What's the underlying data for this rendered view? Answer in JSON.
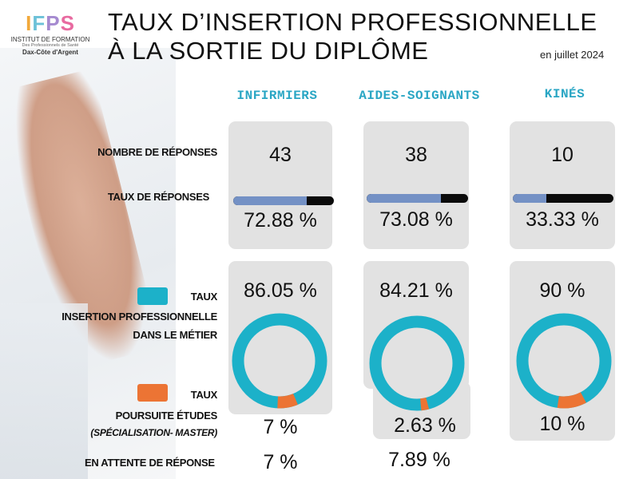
{
  "logo": {
    "letters": [
      "I",
      "F",
      "P",
      "S"
    ],
    "line1": "INSTITUT DE FORMATION",
    "line2": "Des Professionnels de Santé",
    "line3": "Dax-Côte d'Argent"
  },
  "title": {
    "line1": "TAUX D’INSERTION PROFESSIONNELLE",
    "line2": "À LA SORTIE DU DIPLÔME",
    "date": "en juillet 2024"
  },
  "columns": [
    "INFIRMIERS",
    "AIDES-SOIGNANTS",
    "KINÉS"
  ],
  "rows": {
    "nb_reponses": "NOMBRE DE RÉPONSES",
    "taux_reponses": "TAUX  DE RÉPONSES",
    "insertion": {
      "l1": "TAUX",
      "l2": "INSERTION PROFESSIONNELLE",
      "l3": "DANS LE MÉTIER"
    },
    "poursuite": {
      "l1": "TAUX",
      "l2": "POURSUITE ÉTUDES",
      "l3": "(SPÉCIALISATION- MASTER)"
    },
    "attente": "EN ATTENTE DE RÉPONSE"
  },
  "colors": {
    "insertion": "#1cb1c9",
    "poursuite": "#ec7434",
    "bar_fill": "#7491c5",
    "bar_track": "#0b0b0b",
    "panel": "#e2e2e2",
    "heading": "#2aa6c4"
  },
  "data": [
    {
      "nb": "43",
      "taux_rep": "72.88 %",
      "taux_rep_value": 72.88,
      "insertion": "86.05 %",
      "insertion_value": 86.05,
      "poursuite": "7 %",
      "poursuite_value": 7,
      "attente": "7 %"
    },
    {
      "nb": "38",
      "taux_rep": "73.08 %",
      "taux_rep_value": 73.08,
      "insertion": "84.21 %",
      "insertion_value": 84.21,
      "poursuite": "2.63 %",
      "poursuite_value": 2.63,
      "attente": "7.89 %"
    },
    {
      "nb": "10",
      "taux_rep": "33.33 %",
      "taux_rep_value": 33.33,
      "insertion": "90  %",
      "insertion_value": 90,
      "poursuite": "10 %",
      "poursuite_value": 10,
      "attente": ""
    }
  ]
}
